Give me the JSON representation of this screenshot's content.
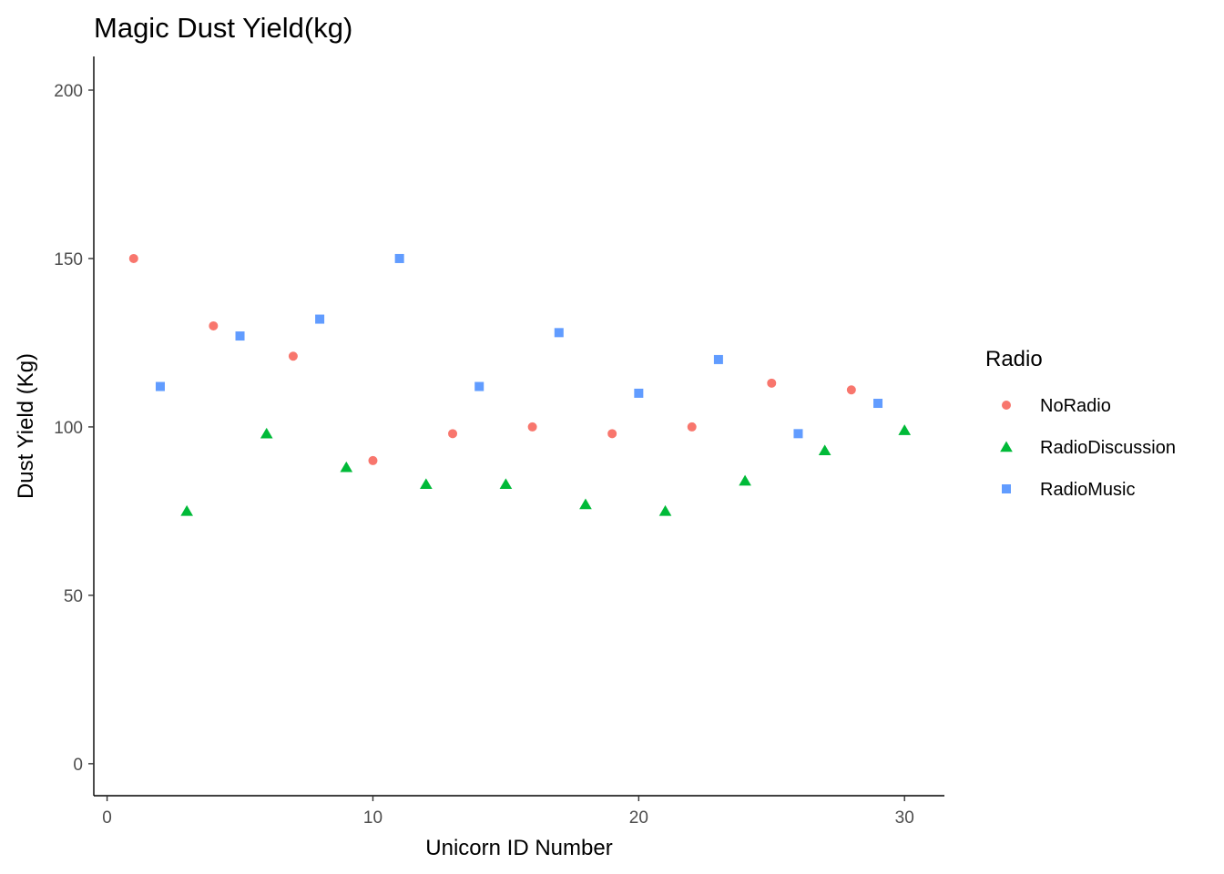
{
  "chart_data": {
    "type": "scatter",
    "title": "Magic Dust Yield(kg)",
    "xlabel": "Unicorn ID Number",
    "ylabel": "Dust Yield (Kg)",
    "xlim": [
      -0.5,
      31.5
    ],
    "ylim": [
      -9.5,
      210
    ],
    "xticks": [
      0,
      10,
      20,
      30
    ],
    "yticks": [
      0,
      50,
      100,
      150,
      200
    ],
    "grid": false,
    "legend": {
      "title": "Radio",
      "position": "right"
    },
    "series": [
      {
        "name": "NoRadio",
        "marker": "circle",
        "color": "#F8766D",
        "x": [
          1,
          4,
          7,
          10,
          13,
          16,
          19,
          22,
          25,
          28
        ],
        "y": [
          150,
          130,
          121,
          90,
          98,
          100,
          98,
          100,
          113,
          111
        ]
      },
      {
        "name": "RadioDiscussion",
        "marker": "triangle",
        "color": "#00BA38",
        "x": [
          3,
          6,
          9,
          12,
          15,
          18,
          21,
          24,
          27,
          30
        ],
        "y": [
          75,
          98,
          88,
          83,
          83,
          77,
          75,
          84,
          93,
          99
        ]
      },
      {
        "name": "RadioMusic",
        "marker": "square",
        "color": "#619CFF",
        "x": [
          2,
          5,
          8,
          11,
          14,
          17,
          20,
          23,
          26,
          29
        ],
        "y": [
          112,
          127,
          132,
          150,
          112,
          128,
          110,
          120,
          98,
          107
        ]
      }
    ]
  }
}
